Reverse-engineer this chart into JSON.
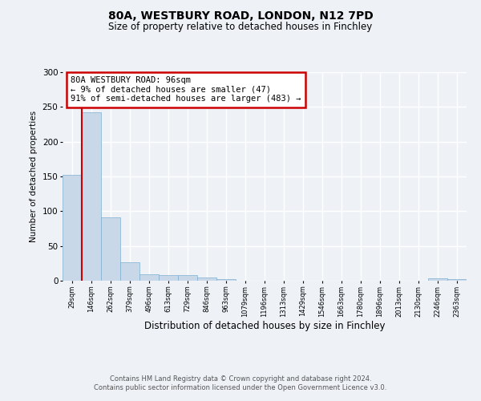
{
  "title": "80A, WESTBURY ROAD, LONDON, N12 7PD",
  "subtitle": "Size of property relative to detached houses in Finchley",
  "xlabel": "Distribution of detached houses by size in Finchley",
  "ylabel": "Number of detached properties",
  "bin_labels": [
    "29sqm",
    "146sqm",
    "262sqm",
    "379sqm",
    "496sqm",
    "613sqm",
    "729sqm",
    "846sqm",
    "963sqm",
    "1079sqm",
    "1196sqm",
    "1313sqm",
    "1429sqm",
    "1546sqm",
    "1663sqm",
    "1780sqm",
    "1896sqm",
    "2013sqm",
    "2130sqm",
    "2246sqm",
    "2363sqm"
  ],
  "bar_heights": [
    152,
    242,
    91,
    27,
    9,
    8,
    8,
    5,
    2,
    0,
    0,
    0,
    0,
    0,
    0,
    0,
    0,
    0,
    0,
    3,
    2
  ],
  "bar_color": "#c8d8e8",
  "bar_edge_color": "#7fafd0",
  "annotation_text": "80A WESTBURY ROAD: 96sqm\n← 9% of detached houses are smaller (47)\n91% of semi-detached houses are larger (483) →",
  "annotation_box_color": "#ffffff",
  "annotation_box_edge": "#cc0000",
  "red_line_color": "#cc0000",
  "red_line_x": 0.5,
  "ylim": [
    0,
    300
  ],
  "yticks": [
    0,
    50,
    100,
    150,
    200,
    250,
    300
  ],
  "background_color": "#eef2f7",
  "plot_background": "#eef2f7",
  "grid_color": "#ffffff",
  "footer_line1": "Contains HM Land Registry data © Crown copyright and database right 2024.",
  "footer_line2": "Contains public sector information licensed under the Open Government Licence v3.0."
}
